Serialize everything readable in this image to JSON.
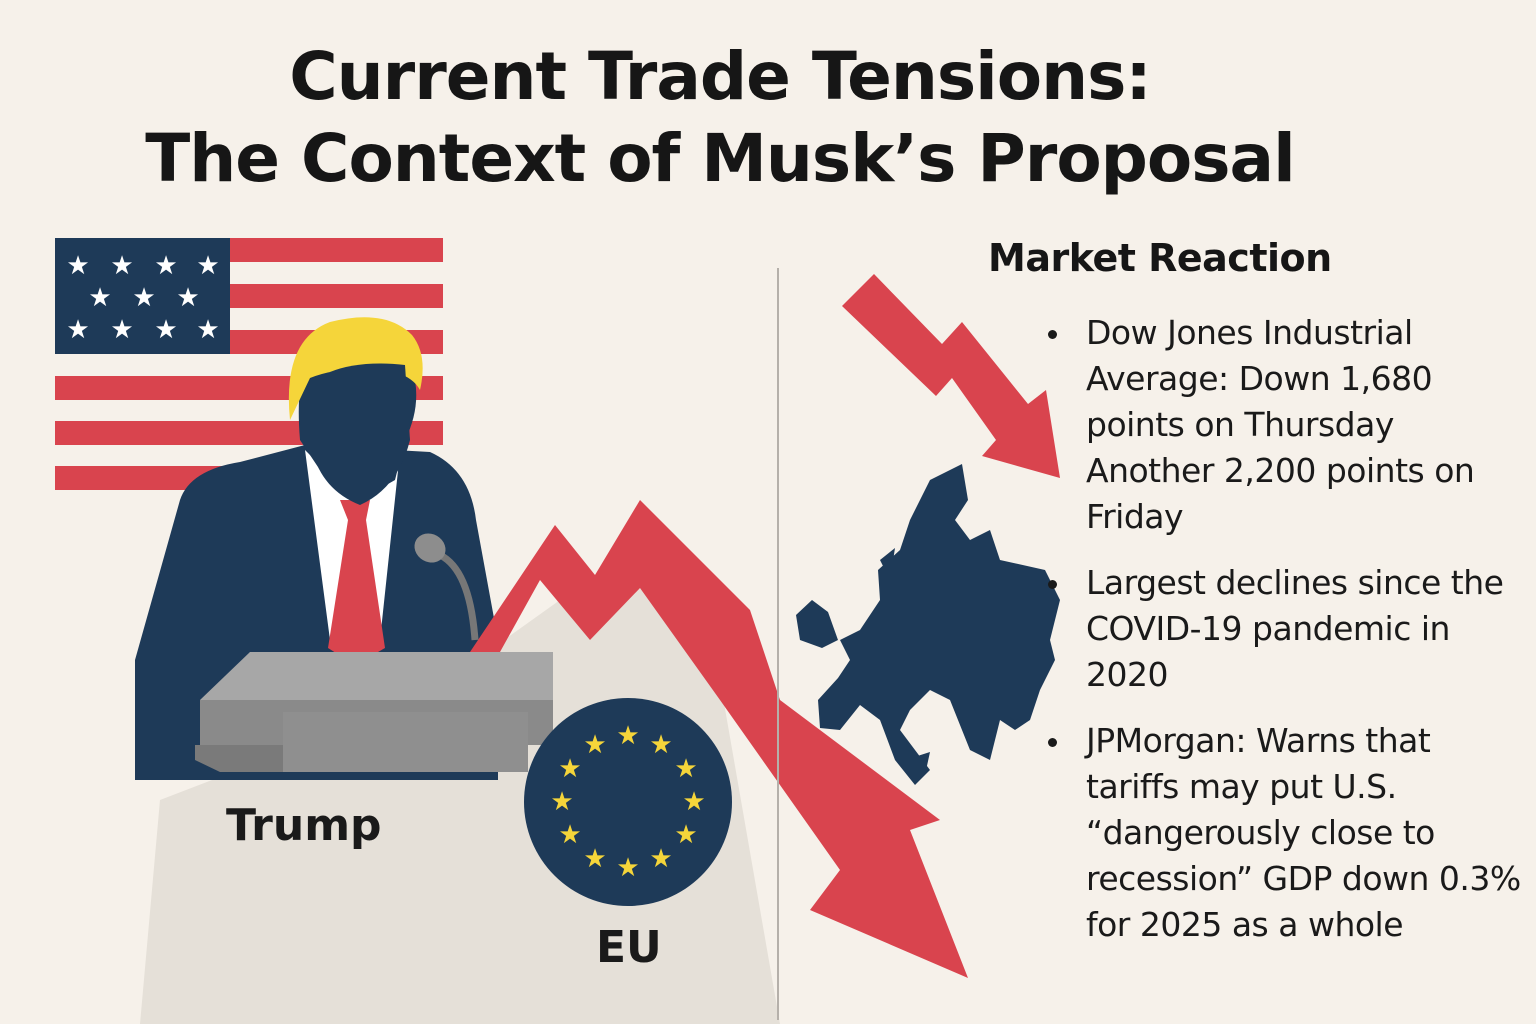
{
  "title": {
    "line1": "Current Trade Tensions:",
    "line2": "The Context of Musk’s Proposal"
  },
  "labels": {
    "trump": "Trump",
    "eu": "EU"
  },
  "market": {
    "heading": "Market Reaction",
    "bullets": [
      "Dow Jones Industrial Average: Down 1,680 points on Thursday Another 2,200 points on Friday",
      "Largest declines since the COVID-19 pandemic in 2020",
      "JPMorgan: Warns that tariffs may put U.S. “dangerously close to recession” GDP down 0.3% for 2025 as a whole"
    ]
  },
  "colors": {
    "background": "#f6f1ea",
    "arrow_red": "#d9444e",
    "navy": "#1e3a58",
    "gold": "#f5d53a",
    "podium_gray": "#8a8a8a"
  }
}
